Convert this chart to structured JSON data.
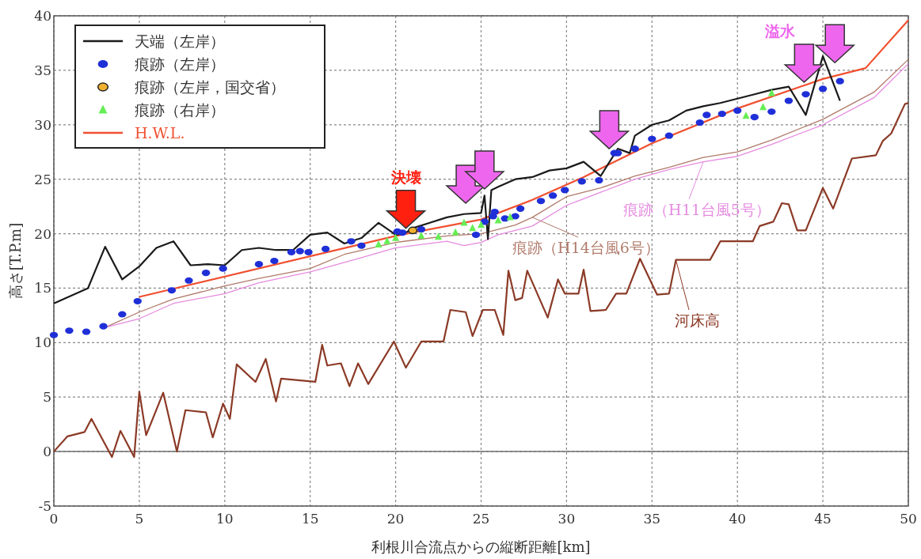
{
  "chart_data": {
    "type": "line",
    "xlabel": "利根川合流点からの縦断距離[km]",
    "ylabel": "高さ[T.P.m]",
    "xlim": [
      0,
      50
    ],
    "xticks": [
      0,
      5,
      10,
      15,
      20,
      25,
      30,
      35,
      40,
      45,
      50
    ],
    "ylim": [
      -5,
      40
    ],
    "yticks": [
      -5,
      0,
      5,
      10,
      15,
      20,
      25,
      30,
      35,
      40
    ],
    "grid": true,
    "legend": "top left",
    "ref_lines": [
      {
        "axis": "y",
        "value": 0,
        "color": "#707070",
        "line_style": "solid"
      }
    ],
    "series": [
      {
        "name": "天端（左岸）",
        "color": "#1a1a1a",
        "x": [
          0,
          2,
          3,
          4,
          5,
          6,
          7,
          8,
          9,
          10,
          11,
          12,
          13,
          14,
          15,
          16,
          17,
          18,
          19,
          20,
          20.5,
          21,
          22,
          23,
          24,
          25,
          25.2,
          25.4,
          25.6,
          26,
          27,
          28,
          29,
          30,
          31,
          32,
          33,
          33.7,
          34,
          35,
          36,
          37,
          38,
          39,
          40,
          41,
          42,
          43,
          44,
          45,
          46
        ],
        "values": [
          13.6,
          15.0,
          18.8,
          15.8,
          17.0,
          18.7,
          19.3,
          17.1,
          17.2,
          17.1,
          18.5,
          18.7,
          18.5,
          18.5,
          19.9,
          20.1,
          19.1,
          19.6,
          21.0,
          19.9,
          20.0,
          20.5,
          21.0,
          21.5,
          21.8,
          21.9,
          23.5,
          19.5,
          24.0,
          24.3,
          25.0,
          25.2,
          25.8,
          26.0,
          26.6,
          25.3,
          27.8,
          27.4,
          29.0,
          30.0,
          30.4,
          31.3,
          31.7,
          32.0,
          32.4,
          32.8,
          33.2,
          33.5,
          30.9,
          36.3,
          32.2
        ]
      },
      {
        "name": "痕跡（左岸）",
        "type": "scatter",
        "marker": "circle",
        "color": "#1f2fd8",
        "x": [
          0,
          0.9,
          1.9,
          2.9,
          4.0,
          4.9,
          6.9,
          7.9,
          8.9,
          9.9,
          12.0,
          12.9,
          13.9,
          14.4,
          14.9,
          15.9,
          17.4,
          18.0,
          20.1,
          20.4,
          21.5,
          24.7,
          25.2,
          25.7,
          25.8,
          26.4,
          27.0,
          27.3,
          28.5,
          29.2,
          29.9,
          30.9,
          31.9,
          32.8,
          33.0,
          34.0,
          35.0,
          36.0,
          37.8,
          38.2,
          39.1,
          40.0,
          41.0,
          42.0,
          43.0,
          44.0,
          45.0,
          46.0
        ],
        "values": [
          10.7,
          11.1,
          11.0,
          11.5,
          12.6,
          13.8,
          14.8,
          15.7,
          16.4,
          16.8,
          17.2,
          17.5,
          18.3,
          18.4,
          18.3,
          18.6,
          19.3,
          18.9,
          20.2,
          20.1,
          20.4,
          19.9,
          21.1,
          21.6,
          22.0,
          21.4,
          21.6,
          22.3,
          23.0,
          23.5,
          24.0,
          24.8,
          24.9,
          27.4,
          27.4,
          27.8,
          28.7,
          29.0,
          30.2,
          30.9,
          31.0,
          31.3,
          30.7,
          31.2,
          32.2,
          32.8,
          33.3,
          34.0
        ]
      },
      {
        "name": "痕跡（左岸，国交省）",
        "type": "scatter",
        "marker": "circle",
        "color": "#f0b030",
        "x": [
          21.0
        ],
        "values": [
          20.3
        ]
      },
      {
        "name": "痕跡（右岸）",
        "type": "scatter",
        "marker": "triangle",
        "color": "#66ee55",
        "x": [
          19.0,
          19.5,
          20.0,
          21.5,
          22.5,
          23.5,
          24.0,
          24.5,
          25.0,
          26.0,
          26.7,
          40.5,
          41.5,
          42.0
        ],
        "values": [
          19.0,
          19.3,
          19.6,
          19.8,
          19.7,
          20.1,
          21.0,
          20.5,
          20.8,
          21.2,
          21.5,
          30.8,
          31.6,
          32.9
        ]
      },
      {
        "name": "H.W.L.",
        "color": "#f05030",
        "x": [
          5,
          20,
          25,
          28,
          31,
          35,
          40,
          45,
          47.5,
          50
        ],
        "values": [
          14.2,
          19.8,
          21.3,
          23.1,
          25.2,
          28.3,
          31.5,
          34.2,
          35.2,
          39.6
        ]
      },
      {
        "name": "痕跡（H11台風5号）",
        "color": "#e58ae0",
        "x": [
          3,
          5,
          7,
          10,
          12,
          15,
          18,
          20,
          23,
          24,
          25,
          26,
          28,
          30,
          32,
          34,
          36,
          38,
          40,
          42,
          45,
          48,
          50
        ],
        "values": [
          11.4,
          12.2,
          13.6,
          14.5,
          15.5,
          16.5,
          17.8,
          18.7,
          19.3,
          18.9,
          19.2,
          19.9,
          20.7,
          22.6,
          23.8,
          25.0,
          25.9,
          26.6,
          27.1,
          28.2,
          30.0,
          32.5,
          35.6
        ]
      },
      {
        "name": "痕跡（H14台風6号）",
        "color": "#b07a6a",
        "x": [
          3,
          5,
          7,
          10,
          12,
          15,
          17,
          20,
          23,
          25,
          27,
          28,
          30,
          32,
          34,
          36,
          38,
          40,
          42,
          45,
          48,
          50
        ],
        "values": [
          11.4,
          12.8,
          14.0,
          15.2,
          15.9,
          16.8,
          18.1,
          19.2,
          19.8,
          20.0,
          20.8,
          21.5,
          23.4,
          24.2,
          25.3,
          26.1,
          27.0,
          27.5,
          28.6,
          30.5,
          33.0,
          36.0
        ]
      },
      {
        "name": "河床高",
        "color": "#8b3a26",
        "x": [
          0,
          0.8,
          1.8,
          2.2,
          3.4,
          3.9,
          4.7,
          5.0,
          5.4,
          6.4,
          7.2,
          7.7,
          8.9,
          9.3,
          9.9,
          10.3,
          10.7,
          11.8,
          12.4,
          13.0,
          13.3,
          15.3,
          15.7,
          16.0,
          16.8,
          17.3,
          17.8,
          18.4,
          19.9,
          20.6,
          21.5,
          22.8,
          23.2,
          24.1,
          24.5,
          25.1,
          25.8,
          26.3,
          26.6,
          27.0,
          27.4,
          27.7,
          28.9,
          29.5,
          29.9,
          30.7,
          31.0,
          31.4,
          32.3,
          32.9,
          33.5,
          34.3,
          35.3,
          36.0,
          36.4,
          38.4,
          39.0,
          40.9,
          41.3,
          42.1,
          42.6,
          43.0,
          43.5,
          44.0,
          45.0,
          45.6,
          46.7,
          48.1,
          48.5,
          49.0,
          49.8,
          50
        ],
        "values": [
          0.0,
          1.4,
          1.8,
          3.0,
          -0.5,
          1.9,
          -0.5,
          5.5,
          1.5,
          5.4,
          0.0,
          3.8,
          3.6,
          1.3,
          4.4,
          3.0,
          8.0,
          6.4,
          8.5,
          4.6,
          6.7,
          6.4,
          9.8,
          7.9,
          8.1,
          6.0,
          8.1,
          6.2,
          10.1,
          7.7,
          10.1,
          10.1,
          13.0,
          12.8,
          10.6,
          13.0,
          13.0,
          10.7,
          16.6,
          13.9,
          14.1,
          16.6,
          12.3,
          15.8,
          14.5,
          14.5,
          16.7,
          12.9,
          13.0,
          14.5,
          14.5,
          17.7,
          14.4,
          14.5,
          17.6,
          17.6,
          19.3,
          19.3,
          20.7,
          21.1,
          22.8,
          22.7,
          20.3,
          20.3,
          24.2,
          22.3,
          26.9,
          27.2,
          28.5,
          29.2,
          31.9,
          32.0
        ]
      }
    ],
    "annotations": [
      {
        "text": "決壊",
        "x": 20.6,
        "y": 20.5
      },
      {
        "text": "溢水",
        "x": 43.9,
        "y": 33.9
      }
    ]
  }
}
